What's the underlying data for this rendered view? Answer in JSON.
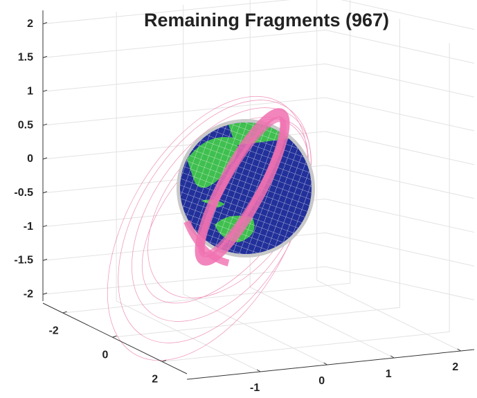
{
  "chart_data": {
    "type": "orbit3d",
    "title": "Remaining Fragments (967)",
    "xlim": [
      -2.1,
      2.2
    ],
    "xticks": [
      -1,
      0,
      1,
      2
    ],
    "ylim": [
      -2.8,
      3
    ],
    "yticks": [
      -2,
      0,
      2
    ],
    "zlim": [
      -2.1,
      2.2
    ],
    "zticks": [
      -2,
      -1.5,
      -1,
      -0.5,
      0,
      0.5,
      1,
      1.5,
      2
    ],
    "grid": true
  }
}
